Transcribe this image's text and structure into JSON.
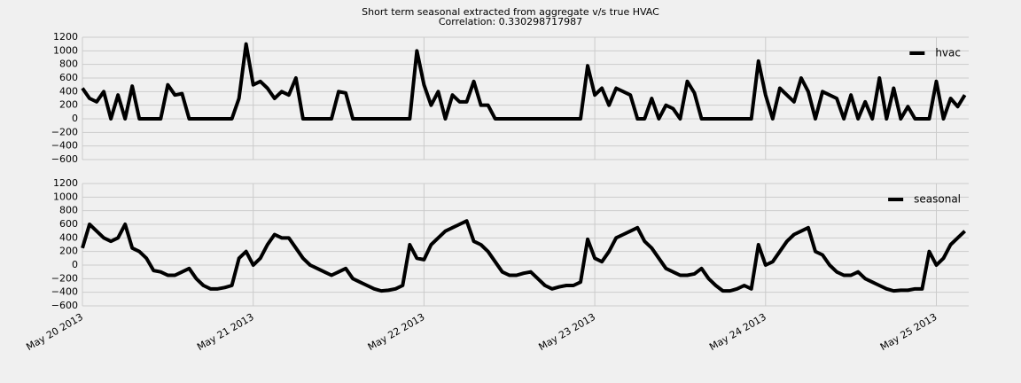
{
  "chart_data": [
    {
      "type": "line",
      "title": "Short term seasonal extracted from aggregate v/s true HVAC",
      "subtitle": "Correlation: 0.330298717987",
      "series": [
        {
          "name": "hvac",
          "color": "#000000",
          "values": [
            450,
            300,
            250,
            400,
            0,
            350,
            0,
            480,
            0,
            0,
            0,
            0,
            500,
            350,
            370,
            0,
            0,
            0,
            0,
            0,
            0,
            0,
            300,
            1100,
            500,
            550,
            450,
            300,
            400,
            350,
            600,
            0,
            0,
            0,
            0,
            0,
            400,
            380,
            0,
            0,
            0,
            0,
            0,
            0,
            0,
            0,
            0,
            1000,
            500,
            200,
            400,
            0,
            350,
            250,
            250,
            550,
            200,
            200,
            0,
            0,
            0,
            0,
            0,
            0,
            0,
            0,
            0,
            0,
            0,
            0,
            0,
            780,
            350,
            450,
            200,
            450,
            400,
            350,
            0,
            0,
            300,
            0,
            200,
            150,
            0,
            550,
            380,
            0,
            0,
            0,
            0,
            0,
            0,
            0,
            0,
            850,
            350,
            0,
            450,
            350,
            250,
            600,
            400,
            0,
            400,
            350,
            300,
            0,
            350,
            0,
            250,
            0,
            600,
            0,
            450,
            0,
            180,
            0,
            0,
            0,
            550,
            0,
            300,
            180,
            350
          ]
        }
      ],
      "ylim": [
        -600,
        1200
      ],
      "yticks": [
        {
          "value": -600,
          "label": "−600"
        },
        {
          "value": -400,
          "label": "−400"
        },
        {
          "value": -200,
          "label": "−200"
        },
        0,
        200,
        400,
        600,
        800,
        1000,
        1200
      ],
      "grid": true,
      "legend": "upper right"
    },
    {
      "type": "line",
      "series": [
        {
          "name": "seasonal",
          "color": "#000000",
          "values": [
            250,
            600,
            500,
            400,
            350,
            400,
            600,
            250,
            200,
            100,
            -80,
            -100,
            -150,
            -150,
            -100,
            -50,
            -200,
            -300,
            -350,
            -350,
            -330,
            -300,
            100,
            200,
            0,
            100,
            300,
            450,
            400,
            400,
            250,
            100,
            0,
            -50,
            -100,
            -150,
            -100,
            -50,
            -200,
            -250,
            -300,
            -350,
            -380,
            -370,
            -350,
            -300,
            300,
            100,
            80,
            300,
            400,
            500,
            550,
            600,
            650,
            350,
            300,
            200,
            50,
            -100,
            -150,
            -150,
            -120,
            -100,
            -200,
            -300,
            -350,
            -320,
            -300,
            -300,
            -250,
            380,
            100,
            50,
            200,
            400,
            450,
            500,
            550,
            350,
            250,
            100,
            -50,
            -100,
            -150,
            -150,
            -130,
            -50,
            -200,
            -300,
            -380,
            -380,
            -350,
            -300,
            -350,
            300,
            0,
            50,
            200,
            350,
            450,
            500,
            550,
            200,
            150,
            0,
            -100,
            -150,
            -150,
            -100,
            -200,
            -250,
            -300,
            -350,
            -380,
            -370,
            -370,
            -350,
            -350,
            200,
            0,
            100,
            300,
            400,
            500
          ]
        }
      ],
      "ylim": [
        -600,
        1200
      ],
      "yticks": [
        {
          "value": -600,
          "label": "−600"
        },
        {
          "value": -400,
          "label": "−400"
        },
        {
          "value": -200,
          "label": "−200"
        },
        0,
        200,
        400,
        600,
        800,
        1000,
        1200
      ],
      "xticks": [
        "May 20 2013",
        "May 21 2013",
        "May 22 2013",
        "May 23 2013",
        "May 24 2013",
        "May 25 2013"
      ],
      "grid": true,
      "legend": "upper right"
    }
  ]
}
